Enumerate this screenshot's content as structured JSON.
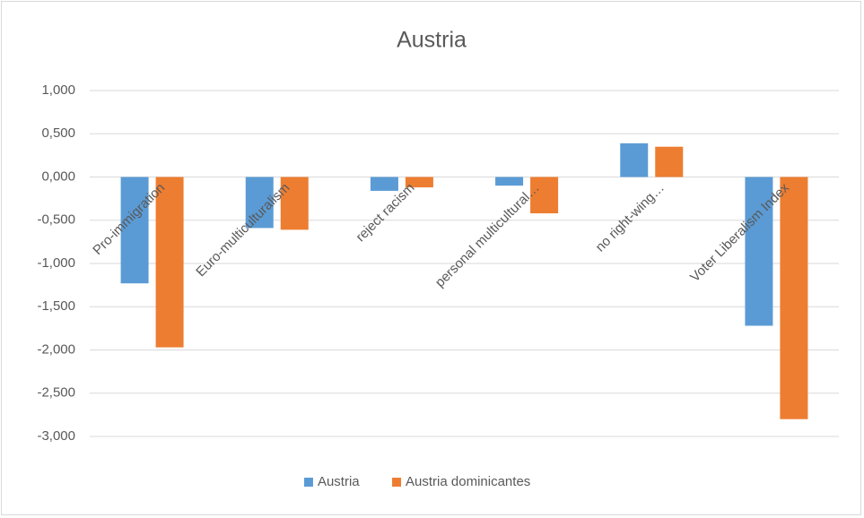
{
  "chart_data": {
    "type": "bar",
    "title": "Austria",
    "categories": [
      "Pro-immigration",
      "Euro-multiculturalism",
      "reject racism",
      "personal multicultural…",
      "no right-wing…",
      "Voter Liberalism Index"
    ],
    "series": [
      {
        "name": "Austria",
        "color": "#5b9bd5",
        "values": [
          -1.23,
          -0.59,
          -0.16,
          -0.1,
          0.39,
          -1.72
        ]
      },
      {
        "name": "Austria dominicantes",
        "color": "#ed7d31",
        "values": [
          -1.97,
          -0.61,
          -0.12,
          -0.42,
          0.35,
          -2.8
        ]
      }
    ],
    "ylim": [
      -3,
      1
    ],
    "yticks": [
      {
        "value": -3,
        "label": "-3,000"
      },
      {
        "value": -2.5,
        "label": "-2,500"
      },
      {
        "value": -2,
        "label": "-2,000"
      },
      {
        "value": -1.5,
        "label": "-1,500"
      },
      {
        "value": -1,
        "label": "-1,000"
      },
      {
        "value": -0.5,
        "label": "-0,500"
      },
      {
        "value": 0,
        "label": "0,000"
      },
      {
        "value": 0.5,
        "label": "0,500"
      },
      {
        "value": 1,
        "label": "1,000"
      }
    ],
    "grid": true,
    "legend": "bottom"
  }
}
